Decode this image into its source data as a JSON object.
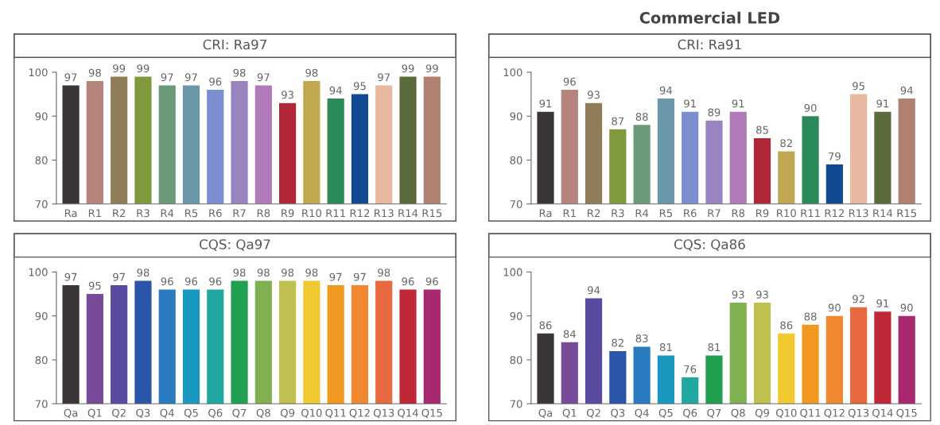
{
  "chart_data": [
    {
      "type": "bar",
      "subtitle": "CRI: Ra97",
      "categories": [
        "Ra",
        "R1",
        "R2",
        "R3",
        "R4",
        "R5",
        "R6",
        "R7",
        "R8",
        "R9",
        "R10",
        "R11",
        "R12",
        "R13",
        "R14",
        "R15"
      ],
      "values": [
        97,
        98,
        99,
        99,
        97,
        97,
        96,
        98,
        97,
        93,
        98,
        94,
        95,
        97,
        99,
        99
      ],
      "colors": [
        "#3a3536",
        "#b5847c",
        "#8f7d5a",
        "#7f9a3c",
        "#6a9a78",
        "#6a98a8",
        "#7a8ed0",
        "#9a84c0",
        "#b07ab8",
        "#b02838",
        "#c0a850",
        "#2a8a5a",
        "#104a90",
        "#e8b8a0",
        "#5a6a3a",
        "#b08070"
      ],
      "ylim": [
        70,
        100
      ],
      "yticks": [
        70,
        80,
        90,
        100
      ],
      "data_labels": true,
      "grid": false,
      "legend": false
    },
    {
      "type": "bar",
      "title": "Commercial LED",
      "subtitle": "CRI: Ra91",
      "categories": [
        "Ra",
        "R1",
        "R2",
        "R3",
        "R4",
        "R5",
        "R6",
        "R7",
        "R8",
        "R9",
        "R10",
        "R11",
        "R12",
        "R13",
        "R14",
        "R15"
      ],
      "values": [
        91,
        96,
        93,
        87,
        88,
        94,
        91,
        89,
        91,
        85,
        82,
        90,
        79,
        95,
        91,
        94
      ],
      "colors": [
        "#3a3536",
        "#b5847c",
        "#8f7d5a",
        "#7f9a3c",
        "#6a9a78",
        "#6a98a8",
        "#7a8ed0",
        "#9a84c0",
        "#b07ab8",
        "#b02838",
        "#c0a850",
        "#2a8a5a",
        "#104a90",
        "#e8b8a0",
        "#5a6a3a",
        "#b08070"
      ],
      "ylim": [
        70,
        100
      ],
      "yticks": [
        70,
        80,
        90,
        100
      ],
      "data_labels": true,
      "grid": false,
      "legend": false
    },
    {
      "type": "bar",
      "subtitle": "CQS: Qa97",
      "categories": [
        "Qa",
        "Q1",
        "Q2",
        "Q3",
        "Q4",
        "Q5",
        "Q6",
        "Q7",
        "Q8",
        "Q9",
        "Q10",
        "Q11",
        "Q12",
        "Q13",
        "Q14",
        "Q15"
      ],
      "values": [
        97,
        95,
        97,
        98,
        96,
        96,
        96,
        98,
        98,
        98,
        98,
        97,
        97,
        98,
        96,
        96
      ],
      "colors": [
        "#3a3536",
        "#7a4a9a",
        "#5a4aa0",
        "#2a55a8",
        "#2a7ac0",
        "#1a98c0",
        "#20a8a0",
        "#20a050",
        "#80b050",
        "#c0c050",
        "#f0c830",
        "#f09820",
        "#f08830",
        "#e86840",
        "#c02838",
        "#a82870"
      ],
      "ylim": [
        70,
        100
      ],
      "yticks": [
        70,
        80,
        90,
        100
      ],
      "data_labels": true,
      "grid": false,
      "legend": false
    },
    {
      "type": "bar",
      "subtitle": "CQS: Qa86",
      "categories": [
        "Qa",
        "Q1",
        "Q2",
        "Q3",
        "Q4",
        "Q5",
        "Q6",
        "Q7",
        "Q8",
        "Q9",
        "Q10",
        "Q11",
        "Q12",
        "Q13",
        "Q14",
        "Q15"
      ],
      "values": [
        86,
        84,
        94,
        82,
        83,
        81,
        76,
        81,
        93,
        93,
        86,
        88,
        90,
        92,
        91,
        90
      ],
      "colors": [
        "#3a3536",
        "#7a4a9a",
        "#5a4aa0",
        "#2a55a8",
        "#2a7ac0",
        "#1a98c0",
        "#20a8a0",
        "#20a050",
        "#80b050",
        "#c0c050",
        "#f0c830",
        "#f09820",
        "#f08830",
        "#e86840",
        "#c02838",
        "#a82870"
      ],
      "ylim": [
        70,
        100
      ],
      "yticks": [
        70,
        80,
        90,
        100
      ],
      "data_labels": true,
      "grid": false,
      "legend": false
    }
  ]
}
